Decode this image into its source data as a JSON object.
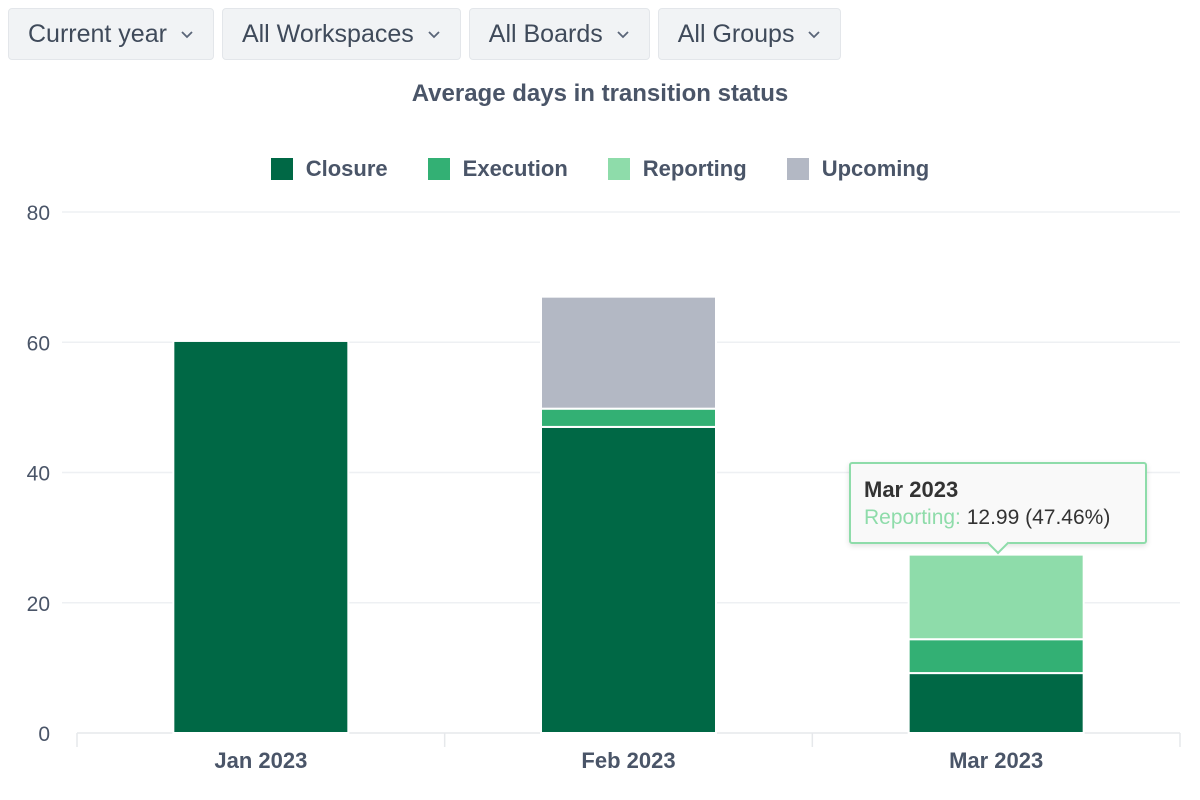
{
  "filters": [
    {
      "label": "Current year"
    },
    {
      "label": "All Workspaces"
    },
    {
      "label": "All Boards"
    },
    {
      "label": "All Groups"
    }
  ],
  "icons": {
    "dropdown": "chevron-down-icon"
  },
  "chart_data": {
    "type": "bar",
    "stacked": true,
    "title": "Average days in transition status",
    "xlabel": "",
    "ylabel": "",
    "categories": [
      "Jan 2023",
      "Feb 2023",
      "Mar 2023"
    ],
    "ylim": [
      0,
      80
    ],
    "yticks": [
      0,
      20,
      40,
      60,
      80
    ],
    "grid": true,
    "legend_position": "top-center",
    "series": [
      {
        "name": "Closure",
        "color": "#006845",
        "values": [
          60.2,
          47,
          9.2
        ]
      },
      {
        "name": "Execution",
        "color": "#33b074",
        "values": [
          0,
          2.8,
          5.2
        ]
      },
      {
        "name": "Reporting",
        "color": "#8edcaa",
        "values": [
          0,
          0,
          12.99
        ]
      },
      {
        "name": "Upcoming",
        "color": "#b3b8c4",
        "values": [
          0,
          17.2,
          0
        ]
      }
    ]
  },
  "tooltip": {
    "title": "Mar 2023",
    "series": "Reporting:",
    "value": "12.99 (47.46%)"
  }
}
